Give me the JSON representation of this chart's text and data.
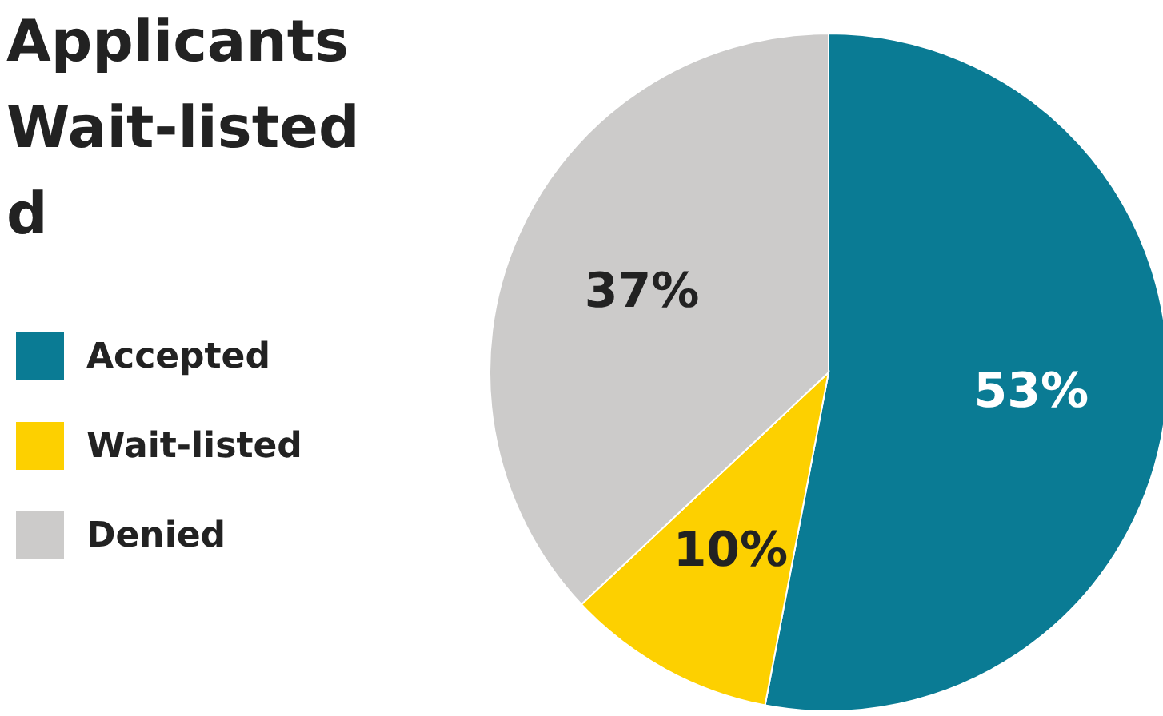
{
  "chart_data": {
    "type": "pie",
    "title": "Applicants\nWait-listed\nd",
    "categories": [
      "Accepted",
      "Wait-listed",
      "Denied"
    ],
    "values": [
      53,
      10,
      37
    ],
    "colors": [
      "#0a7b94",
      "#fdd000",
      "#cccbca"
    ],
    "value_labels": [
      "53%",
      "10%",
      "37%"
    ],
    "legend": "left"
  }
}
